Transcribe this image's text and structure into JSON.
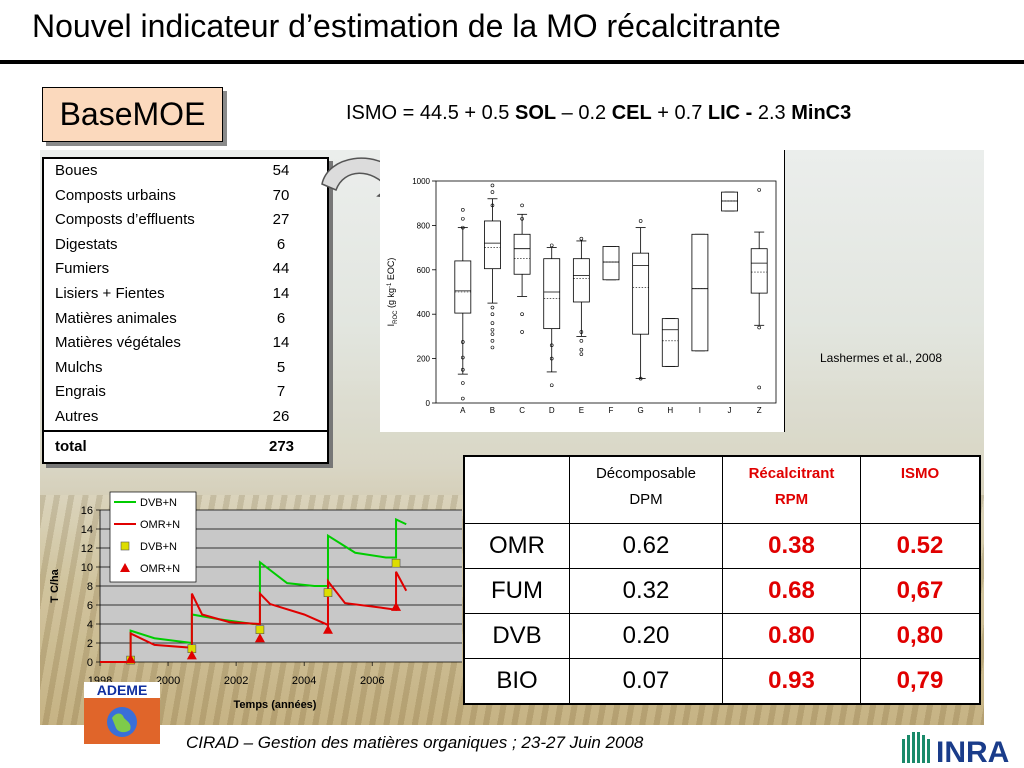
{
  "title": "Nouvel indicateur d’estimation de la MO récalcitrante",
  "basemoe": "BaseMOE",
  "formula": {
    "p1": "ISMO = 44.5 + 0.5 ",
    "sol": "SOL",
    "p2": " – 0.2 ",
    "cel": "CEL",
    "p3": " + 0.7 ",
    "lic": "LIC - ",
    "p4": "2.3 ",
    "minc3": "MinC3"
  },
  "table1": {
    "rows": [
      {
        "label": "Boues",
        "value": "54"
      },
      {
        "label": "Composts urbains",
        "value": "70"
      },
      {
        "label": "Composts d’effluents",
        "value": "27"
      },
      {
        "label": "Digestats",
        "value": "6"
      },
      {
        "label": "Fumiers",
        "value": "44"
      },
      {
        "label": "Lisiers + Fientes",
        "value": "14"
      },
      {
        "label": "Matières animales",
        "value": "6"
      },
      {
        "label": "Matières végétales",
        "value": "14"
      },
      {
        "label": "Mulchs",
        "value": "5"
      },
      {
        "label": "Engrais",
        "value": "7"
      },
      {
        "label": "Autres",
        "value": "26"
      }
    ],
    "total_label": "total",
    "total_value": "273"
  },
  "citation": "Lashermes et al., 2008",
  "table2": {
    "headers": {
      "h1_line1": "Décomposable",
      "h1_line2": "DPM",
      "h2_line1": "Récalcitrant",
      "h2_line2": "RPM",
      "h3": "ISMO"
    },
    "rows": [
      {
        "name": "OMR",
        "dpm": "0.62",
        "rpm": "0.38",
        "ismo": "0.52"
      },
      {
        "name": "FUM",
        "dpm": "0.32",
        "rpm": "0.68",
        "ismo": "0,67"
      },
      {
        "name": "DVB",
        "dpm": "0.20",
        "rpm": "0.80",
        "ismo": "0,80"
      },
      {
        "name": "BIO",
        "dpm": "0.07",
        "rpm": "0.93",
        "ismo": "0,79"
      }
    ]
  },
  "ademe": "ADEME",
  "footer": "CIRAD – Gestion des matières organiques ; 23-27 Juin 2008",
  "inra": "INRA",
  "chart_data": [
    {
      "type": "box",
      "ylabel": "I_ROC (g kg-1 EOC)",
      "ylim": [
        0,
        1000
      ],
      "yticks": [
        0,
        200,
        400,
        600,
        800,
        1000
      ],
      "categories": [
        "A",
        "B",
        "C",
        "D",
        "E",
        "F",
        "G",
        "H",
        "I",
        "J",
        "Z"
      ],
      "boxes": [
        {
          "cat": "A",
          "min": 130,
          "q1": 405,
          "median": 505,
          "mean": 500,
          "q3": 640,
          "max": 790
        },
        {
          "cat": "B",
          "min": 450,
          "q1": 605,
          "median": 720,
          "mean": 700,
          "q3": 820,
          "max": 920
        },
        {
          "cat": "C",
          "min": 480,
          "q1": 580,
          "median": 695,
          "mean": 650,
          "q3": 760,
          "max": 850
        },
        {
          "cat": "D",
          "min": 140,
          "q1": 335,
          "median": 500,
          "mean": 470,
          "q3": 650,
          "max": 700
        },
        {
          "cat": "E",
          "min": 300,
          "q1": 455,
          "median": 575,
          "mean": 560,
          "q3": 650,
          "max": 730
        },
        {
          "cat": "F",
          "min": 555,
          "q1": 555,
          "median": 635,
          "mean": 635,
          "q3": 705,
          "max": 705
        },
        {
          "cat": "G",
          "min": 110,
          "q1": 310,
          "median": 620,
          "mean": 520,
          "q3": 675,
          "max": 790
        },
        {
          "cat": "H",
          "min": 165,
          "q1": 165,
          "median": 330,
          "mean": 280,
          "q3": 380,
          "max": 380
        },
        {
          "cat": "I",
          "min": 235,
          "q1": 235,
          "median": 515,
          "mean": 515,
          "q3": 760,
          "max": 760
        },
        {
          "cat": "J",
          "min": 865,
          "q1": 865,
          "median": 910,
          "mean": 910,
          "q3": 950,
          "max": 950
        },
        {
          "cat": "Z",
          "min": 350,
          "q1": 495,
          "median": 630,
          "mean": 590,
          "q3": 695,
          "max": 770
        }
      ],
      "outliers": [
        {
          "cat": "A",
          "values": [
            20,
            90,
            150,
            205,
            275,
            790,
            830,
            870
          ]
        },
        {
          "cat": "B",
          "values": [
            250,
            280,
            310,
            330,
            360,
            400,
            430,
            890,
            950,
            980
          ]
        },
        {
          "cat": "C",
          "values": [
            320,
            400,
            830,
            890
          ]
        },
        {
          "cat": "D",
          "values": [
            80,
            200,
            260,
            710
          ]
        },
        {
          "cat": "E",
          "values": [
            220,
            240,
            280,
            320,
            740
          ]
        },
        {
          "cat": "G",
          "values": [
            110,
            820
          ]
        },
        {
          "cat": "Z",
          "values": [
            70,
            340,
            960
          ]
        }
      ]
    },
    {
      "type": "line",
      "xlabel": "Temps (années)",
      "ylabel": "T C/ha",
      "xlim": [
        1998,
        2008
      ],
      "xticks": [
        1998,
        2000,
        2002,
        2004,
        2006
      ],
      "ylim": [
        0,
        16
      ],
      "yticks": [
        0,
        2,
        4,
        6,
        8,
        10,
        12,
        14,
        16
      ],
      "series": [
        {
          "name": "DVB+N",
          "color": "#00cc00",
          "points": [
            [
              1998,
              0
            ],
            [
              1998.9,
              0
            ],
            [
              1998.9,
              3.3
            ],
            [
              1999.6,
              2.5
            ],
            [
              2000.7,
              2.0
            ],
            [
              2000.7,
              5.0
            ],
            [
              2001.5,
              4.5
            ],
            [
              2002.5,
              4.0
            ],
            [
              2002.7,
              4.0
            ],
            [
              2002.7,
              10.5
            ],
            [
              2003.5,
              8.3
            ],
            [
              2004.3,
              8.0
            ],
            [
              2004.7,
              8.0
            ],
            [
              2004.7,
              13.3
            ],
            [
              2005.5,
              11.5
            ],
            [
              2006.4,
              11.0
            ],
            [
              2006.7,
              11.0
            ],
            [
              2006.7,
              15.0
            ],
            [
              2007.0,
              14.5
            ]
          ]
        },
        {
          "name": "OMR+N",
          "color": "#e00000",
          "points": [
            [
              1998,
              0
            ],
            [
              1998.9,
              0
            ],
            [
              1998.9,
              3.0
            ],
            [
              1999.6,
              1.8
            ],
            [
              2000.7,
              1.5
            ],
            [
              2000.7,
              7.2
            ],
            [
              2001.0,
              5.0
            ],
            [
              2001.8,
              4.2
            ],
            [
              2002.7,
              4.0
            ],
            [
              2002.7,
              7.2
            ],
            [
              2003.0,
              6.1
            ],
            [
              2004.0,
              5.0
            ],
            [
              2004.7,
              3.9
            ],
            [
              2004.7,
              8.5
            ],
            [
              2005.2,
              6.2
            ],
            [
              2006.3,
              5.7
            ],
            [
              2006.7,
              5.5
            ],
            [
              2006.7,
              9.5
            ],
            [
              2007.0,
              7.5
            ]
          ]
        },
        {
          "name": "DVB+N",
          "color": "#dddd00",
          "marker": "square",
          "points": [
            [
              1998.9,
              0.2
            ],
            [
              2000.7,
              1.4
            ],
            [
              2002.7,
              3.4
            ],
            [
              2004.7,
              7.3
            ],
            [
              2006.7,
              10.4
            ]
          ]
        },
        {
          "name": "OMR+N",
          "color": "#e00000",
          "marker": "triangle",
          "points": [
            [
              1998.9,
              0.3
            ],
            [
              2000.7,
              0.7
            ],
            [
              2002.7,
              2.5
            ],
            [
              2004.7,
              3.4
            ],
            [
              2006.7,
              5.8
            ]
          ]
        }
      ]
    }
  ]
}
